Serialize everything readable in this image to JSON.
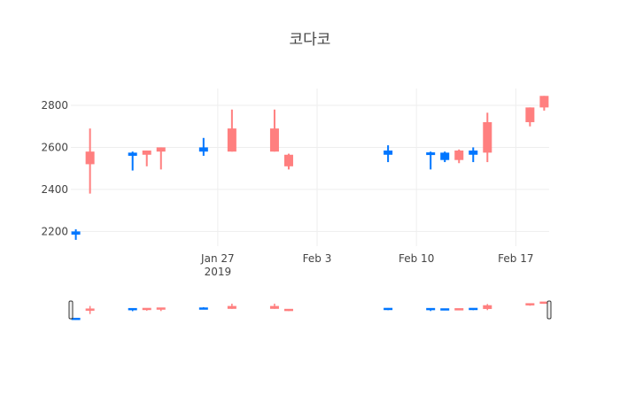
{
  "chart_data": {
    "type": "candlestick",
    "title": "코다코",
    "xlabel": "",
    "ylabel": "",
    "x_range": [
      "2019-01-17",
      "2019-02-19"
    ],
    "ylim": [
      2130,
      2880
    ],
    "y_ticks": [
      2200,
      2400,
      2600,
      2800
    ],
    "x_ticks": [
      {
        "date": "2019-01-27",
        "label": "Jan 27",
        "sublabel": "2019"
      },
      {
        "date": "2019-02-03",
        "label": "Feb 3",
        "sublabel": ""
      },
      {
        "date": "2019-02-10",
        "label": "Feb 10",
        "sublabel": ""
      },
      {
        "date": "2019-02-17",
        "label": "Feb 17",
        "sublabel": ""
      }
    ],
    "grid": true,
    "legend": false,
    "rangeslider": true,
    "colors": {
      "increasing": "#FF7F7F",
      "decreasing": "#0076FF",
      "grid": "#eeeeee",
      "text": "#444444"
    },
    "candles": [
      {
        "date": "2019-01-17",
        "open": 2200,
        "high": 2210,
        "low": 2160,
        "close": 2185
      },
      {
        "date": "2019-01-18",
        "open": 2520,
        "high": 2690,
        "low": 2380,
        "close": 2580
      },
      {
        "date": "2019-01-21",
        "open": 2575,
        "high": 2580,
        "low": 2490,
        "close": 2560
      },
      {
        "date": "2019-01-22",
        "open": 2565,
        "high": 2585,
        "low": 2510,
        "close": 2585
      },
      {
        "date": "2019-01-23",
        "open": 2580,
        "high": 2600,
        "low": 2495,
        "close": 2600
      },
      {
        "date": "2019-01-26",
        "open": 2600,
        "high": 2645,
        "low": 2560,
        "close": 2580
      },
      {
        "date": "2019-01-28",
        "open": 2580,
        "high": 2780,
        "low": 2580,
        "close": 2690
      },
      {
        "date": "2019-01-31",
        "open": 2580,
        "high": 2780,
        "low": 2580,
        "close": 2690
      },
      {
        "date": "2019-02-01",
        "open": 2510,
        "high": 2570,
        "low": 2495,
        "close": 2565
      },
      {
        "date": "2019-02-08",
        "open": 2585,
        "high": 2610,
        "low": 2530,
        "close": 2565
      },
      {
        "date": "2019-02-11",
        "open": 2575,
        "high": 2580,
        "low": 2495,
        "close": 2565
      },
      {
        "date": "2019-02-12",
        "open": 2575,
        "high": 2580,
        "low": 2530,
        "close": 2540
      },
      {
        "date": "2019-02-13",
        "open": 2540,
        "high": 2590,
        "low": 2525,
        "close": 2585
      },
      {
        "date": "2019-02-14",
        "open": 2585,
        "high": 2600,
        "low": 2530,
        "close": 2565
      },
      {
        "date": "2019-02-15",
        "open": 2575,
        "high": 2765,
        "low": 2530,
        "close": 2720
      },
      {
        "date": "2019-02-18",
        "open": 2720,
        "high": 2790,
        "low": 2700,
        "close": 2790
      },
      {
        "date": "2019-02-19",
        "open": 2790,
        "high": 2845,
        "low": 2775,
        "close": 2845
      }
    ]
  }
}
